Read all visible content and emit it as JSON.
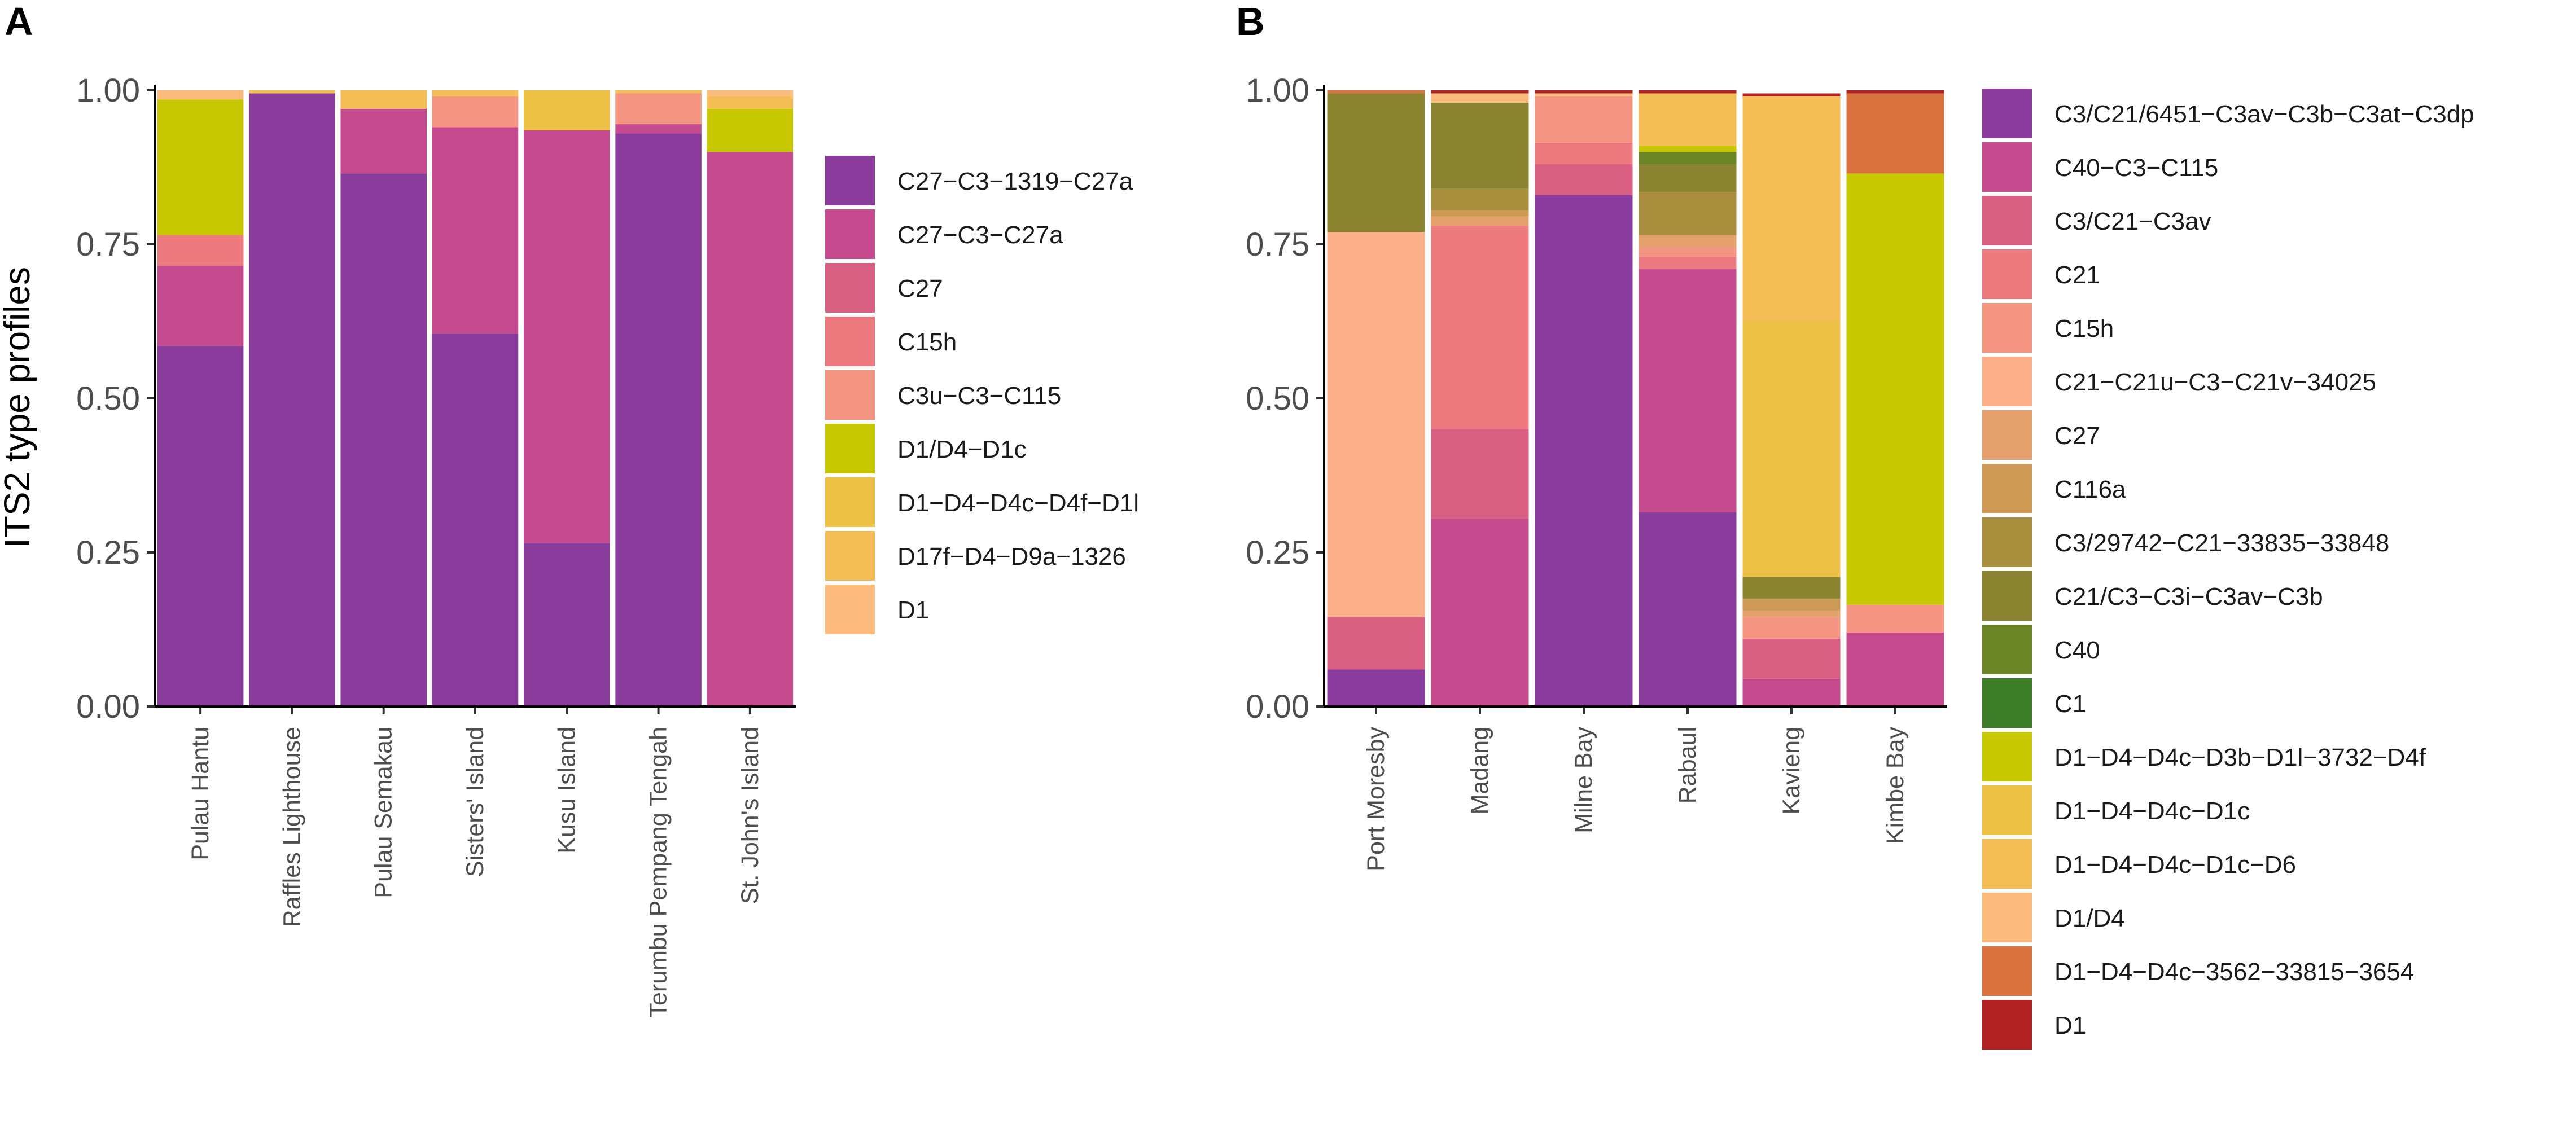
{
  "panels": [
    {
      "letter": "A",
      "ylabel": "ITS2 type profiles"
    },
    {
      "letter": "B",
      "ylabel": ""
    }
  ],
  "chart_data": [
    {
      "type": "bar",
      "stacked": true,
      "title": "A",
      "ylabel": "ITS2 type profiles",
      "xlabel": "",
      "ylim": [
        0,
        1
      ],
      "yticks": [
        "0.00",
        "0.25",
        "0.50",
        "0.75",
        "1.00"
      ],
      "legend_position": "right",
      "categories": [
        "Pulau Hantu",
        "Raffles Lighthouse",
        "Pulau Semakau",
        "Sisters' Island",
        "Kusu Island",
        "Terumbu Pempang Tengah",
        "St. John's Island"
      ],
      "series": [
        {
          "name": "C27−C3−1319−C27a",
          "color": "#8a3c9c",
          "values": [
            0.585,
            0.995,
            0.865,
            0.605,
            0.265,
            0.93,
            0.0
          ]
        },
        {
          "name": "C27−C3−C27a",
          "color": "#c54a8e",
          "values": [
            0.13,
            0.0,
            0.105,
            0.335,
            0.67,
            0.015,
            0.9
          ]
        },
        {
          "name": "C27",
          "color": "#d95f82",
          "values": [
            0.0,
            0.0,
            0.0,
            0.0,
            0.0,
            0.0,
            0.0
          ]
        },
        {
          "name": "C15h",
          "color": "#ec7a7e",
          "values": [
            0.05,
            0.0,
            0.0,
            0.0,
            0.0,
            0.0,
            0.0
          ]
        },
        {
          "name": "C3u−C3−C115",
          "color": "#f49582",
          "values": [
            0.0,
            0.0,
            0.0,
            0.05,
            0.0,
            0.05,
            0.0
          ]
        },
        {
          "name": "D1/D4−D1c",
          "color": "#c8c800",
          "values": [
            0.22,
            0.0,
            0.0,
            0.0,
            0.0,
            0.0,
            0.07
          ]
        },
        {
          "name": "D1−D4−D4c−D4f−D1l",
          "color": "#ecbf45",
          "values": [
            0.0,
            0.0,
            0.0,
            0.0,
            0.065,
            0.0,
            0.0
          ]
        },
        {
          "name": "D17f−D4−D9a−1326",
          "color": "#f5bd55",
          "values": [
            0.0,
            0.005,
            0.03,
            0.01,
            0.0,
            0.005,
            0.02
          ]
        },
        {
          "name": "D1",
          "color": "#fbbb7c",
          "values": [
            0.015,
            0.0,
            0.0,
            0.0,
            0.0,
            0.0,
            0.01
          ]
        }
      ]
    },
    {
      "type": "bar",
      "stacked": true,
      "title": "B",
      "ylabel": "",
      "xlabel": "",
      "ylim": [
        0,
        1
      ],
      "yticks": [
        "0.00",
        "0.25",
        "0.50",
        "0.75",
        "1.00"
      ],
      "legend_position": "right",
      "categories": [
        "Port Moresby",
        "Madang",
        "Milne Bay",
        "Rabaul",
        "Kavieng",
        "Kimbe Bay"
      ],
      "series": [
        {
          "name": "C3/C21/6451−C3av−C3b−C3at−C3dp",
          "color": "#8a3c9c",
          "values": [
            0.06,
            0.0,
            0.83,
            0.315,
            0.0,
            0.0
          ]
        },
        {
          "name": "C40−C3−C115",
          "color": "#c54a8e",
          "values": [
            0.0,
            0.305,
            0.0,
            0.395,
            0.045,
            0.12
          ]
        },
        {
          "name": "C3/C21−C3av",
          "color": "#d95f82",
          "values": [
            0.085,
            0.145,
            0.05,
            0.0,
            0.065,
            0.0
          ]
        },
        {
          "name": "C21",
          "color": "#ec7a7e",
          "values": [
            0.0,
            0.33,
            0.035,
            0.02,
            0.0,
            0.0
          ]
        },
        {
          "name": "C15h",
          "color": "#f49582",
          "values": [
            0.0,
            0.0,
            0.075,
            0.015,
            0.035,
            0.045
          ]
        },
        {
          "name": "C21−C21u−C3−C21v−34025",
          "color": "#fbb08a",
          "values": [
            0.625,
            0.0,
            0.0,
            0.0,
            0.0,
            0.0
          ]
        },
        {
          "name": "C27",
          "color": "#e4a06d",
          "values": [
            0.0,
            0.015,
            0.0,
            0.02,
            0.01,
            0.0
          ]
        },
        {
          "name": "C116a",
          "color": "#cc9a55",
          "values": [
            0.0,
            0.01,
            0.0,
            0.0,
            0.02,
            0.0
          ]
        },
        {
          "name": "C3/29742−C21−33835−33848",
          "color": "#a98e3e",
          "values": [
            0.0,
            0.035,
            0.0,
            0.07,
            0.0,
            0.0
          ]
        },
        {
          "name": "C21/C3−C3i−C3av−C3b",
          "color": "#8a8430",
          "values": [
            0.225,
            0.14,
            0.0,
            0.045,
            0.035,
            0.0
          ]
        },
        {
          "name": "C40",
          "color": "#6b8526",
          "values": [
            0.0,
            0.0,
            0.0,
            0.02,
            0.0,
            0.0
          ]
        },
        {
          "name": "C1",
          "color": "#3d7d2a",
          "values": [
            0.0,
            0.0,
            0.0,
            0.0,
            0.0,
            0.0
          ]
        },
        {
          "name": "D1−D4−D4c−D3b−D1l−3732−D4f",
          "color": "#c8c800",
          "values": [
            0.0,
            0.0,
            0.0,
            0.01,
            0.0,
            0.7
          ]
        },
        {
          "name": "D1−D4−D4c−D1c",
          "color": "#ecbf45",
          "values": [
            0.0,
            0.0,
            0.0,
            0.0,
            0.415,
            0.0
          ]
        },
        {
          "name": "D1−D4−D4c−D1c−D6",
          "color": "#f5bd55",
          "values": [
            0.0,
            0.0,
            0.0,
            0.085,
            0.365,
            0.0
          ]
        },
        {
          "name": "D1/D4",
          "color": "#fbbb7c",
          "values": [
            0.0,
            0.015,
            0.005,
            0.0,
            0.0,
            0.0
          ]
        },
        {
          "name": "D1−D4−D4c−3562−33815−3654",
          "color": "#d9733f",
          "values": [
            0.005,
            0.0,
            0.0,
            0.0,
            0.0,
            0.13
          ]
        },
        {
          "name": "D1",
          "color": "#b22222",
          "values": [
            0.0,
            0.005,
            0.005,
            0.005,
            0.005,
            0.005
          ]
        }
      ]
    }
  ]
}
